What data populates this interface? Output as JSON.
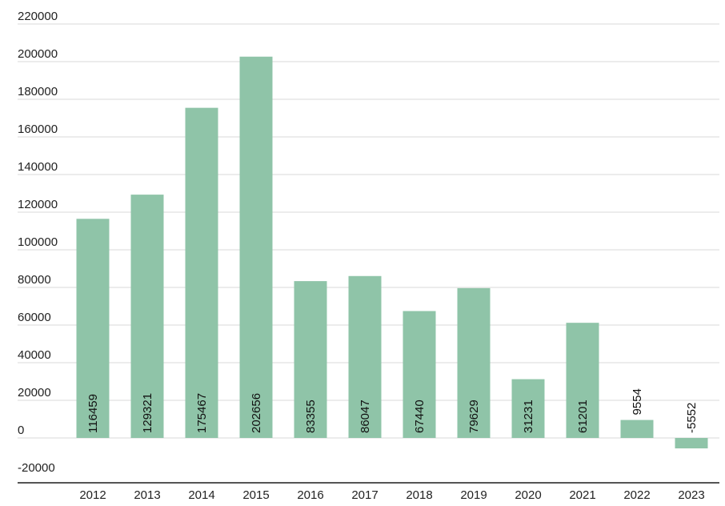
{
  "chart_data": {
    "type": "bar",
    "title": "",
    "xlabel": "",
    "ylabel": "",
    "categories": [
      "2012",
      "2013",
      "2014",
      "2015",
      "2016",
      "2017",
      "2018",
      "2019",
      "2020",
      "2021",
      "2022",
      "2023"
    ],
    "values": [
      116459,
      129321,
      175467,
      202656,
      83355,
      86047,
      67440,
      79629,
      31231,
      61201,
      9554,
      -5552
    ],
    "ylim": [
      -20000,
      220000
    ],
    "yticks": [
      220000,
      200000,
      180000,
      160000,
      140000,
      120000,
      100000,
      80000,
      60000,
      40000,
      20000,
      0,
      -20000
    ],
    "grid": true,
    "bar_color": "#8fc4a8",
    "data_labels": "vertical"
  }
}
